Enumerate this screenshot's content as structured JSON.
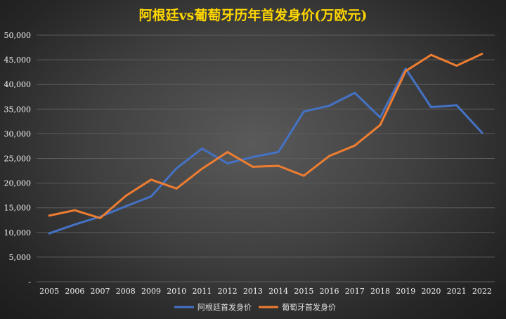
{
  "chart_data": {
    "type": "line",
    "title": "阿根廷vs葡萄牙历年首发身价(万欧元)",
    "xlabel": "",
    "ylabel": "",
    "categories": [
      "2005",
      "2006",
      "2007",
      "2008",
      "2009",
      "2010",
      "2011",
      "2012",
      "2013",
      "2014",
      "2015",
      "2016",
      "2017",
      "2018",
      "2019",
      "2020",
      "2021",
      "2022"
    ],
    "ylim": [
      0,
      50000
    ],
    "yticks": [
      0,
      5000,
      10000,
      15000,
      20000,
      25000,
      30000,
      35000,
      40000,
      45000,
      50000
    ],
    "ytick_labels": [
      "-",
      "5,000",
      "10,000",
      "15,000",
      "20,000",
      "25,000",
      "30,000",
      "35,000",
      "40,000",
      "45,000",
      "50,000"
    ],
    "grid": true,
    "legend_position": "bottom",
    "series": [
      {
        "name": "阿根廷首发身价",
        "color": "#4472C4",
        "values": [
          9800,
          11600,
          13200,
          15300,
          17300,
          23000,
          27000,
          24000,
          25300,
          26300,
          34500,
          35700,
          38300,
          33300,
          43200,
          35400,
          35800,
          30200
        ]
      },
      {
        "name": "葡萄牙首发身价",
        "color": "#ED7D31",
        "values": [
          13400,
          14500,
          12900,
          17400,
          20700,
          18900,
          22900,
          26300,
          23300,
          23500,
          21500,
          25500,
          27600,
          31800,
          42700,
          46000,
          43800,
          46200
        ]
      }
    ]
  }
}
